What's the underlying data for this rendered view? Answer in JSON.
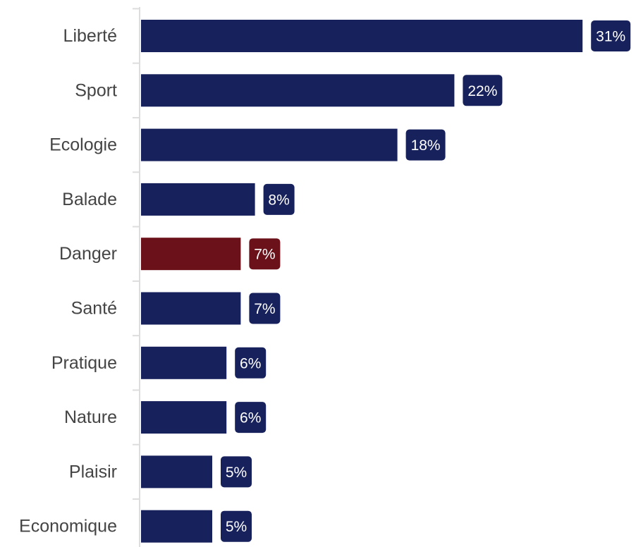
{
  "chart_data": {
    "type": "bar",
    "orientation": "horizontal",
    "title": "",
    "xlabel": "",
    "ylabel": "",
    "categories": [
      "Liberté",
      "Sport",
      "Ecologie",
      "Balade",
      "Danger",
      "Santé",
      "Pratique",
      "Nature",
      "Plaisir",
      "Economique"
    ],
    "values": [
      31,
      22,
      18,
      8,
      7,
      7,
      6,
      6,
      5,
      5
    ],
    "value_labels": [
      "31%",
      "22%",
      "18%",
      "8%",
      "7%",
      "7%",
      "6%",
      "6%",
      "5%",
      "5%"
    ],
    "highlight_category": "Danger",
    "unit": "%",
    "xlim": [
      0,
      100
    ],
    "grid": false,
    "legend": "none"
  },
  "colors": {
    "bar": "#17215c",
    "highlight": "#6b1119",
    "axis": "#dddddd",
    "label_text": "#444444",
    "value_text": "#ffffff"
  }
}
